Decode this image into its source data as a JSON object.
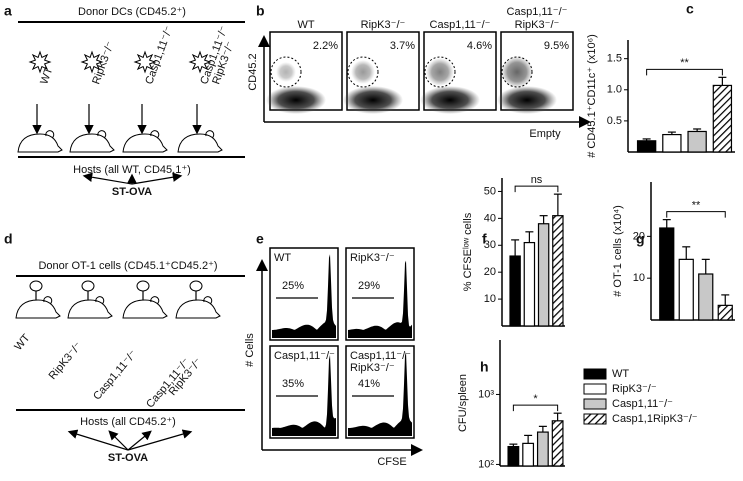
{
  "panel_a": {
    "label": "a",
    "title": "Donor DCs (CD45.2⁺)",
    "donors": [
      [
        "WT"
      ],
      [
        "RipK3⁻/⁻"
      ],
      [
        "Casp1,11⁻/⁻"
      ],
      [
        "Casp1,11⁻/⁻",
        "RipK3⁻/⁻"
      ]
    ],
    "hosts": "Hosts (all WT, CD45.1⁺)",
    "challenge": "ST-OVA"
  },
  "panel_b": {
    "label": "b",
    "plots": [
      {
        "name": [
          "WT"
        ],
        "pct": "2.2%"
      },
      {
        "name": [
          "RipK3⁻/⁻"
        ],
        "pct": "3.7%"
      },
      {
        "name": [
          "Casp1,11⁻/⁻"
        ],
        "pct": "4.6%"
      },
      {
        "name": [
          "Casp1,11⁻/⁻",
          "RipK3⁻/⁻"
        ],
        "pct": "9.5%"
      }
    ],
    "ylabel": "CD45.2",
    "xlabel": "Empty"
  },
  "panel_d": {
    "label": "d",
    "title": "Donor OT-1 cells (CD45.1⁺CD45.2⁺)",
    "donors": [
      [
        "WT"
      ],
      [
        "RipK3⁻/⁻"
      ],
      [
        "Casp1,11⁻/⁻"
      ],
      [
        "Casp1,11⁻/⁻",
        "RipK3⁻/⁻"
      ]
    ],
    "hosts": "Hosts (all CD45.2⁺)",
    "challenge": "ST-OVA"
  },
  "panel_e": {
    "label": "e",
    "plots": [
      {
        "name": [
          "WT"
        ],
        "pct": "25%"
      },
      {
        "name": [
          "RipK3⁻/⁻"
        ],
        "pct": "29%"
      },
      {
        "name": [
          "Casp1,11⁻/⁻"
        ],
        "pct": "35%"
      },
      {
        "name": [
          "Casp1,11⁻/⁻",
          "RipK3⁻/⁻"
        ],
        "pct": "41%"
      }
    ],
    "ylabel": "# Cells",
    "xlabel": "CFSE"
  },
  "chart_data": [
    {
      "label": "c",
      "type": "bar",
      "ylabel": "# CD45.1⁺CD11c⁺ (x10⁶)",
      "categories": [
        null,
        null,
        null,
        null
      ],
      "values": [
        0.18,
        0.28,
        0.33,
        1.07
      ],
      "errors": [
        0.03,
        0.04,
        0.04,
        0.13
      ],
      "colors": [
        "#000000",
        "#ffffff",
        "#c8c8c8",
        "#ffffff"
      ],
      "hatched": [
        false,
        false,
        false,
        true
      ],
      "ylim": [
        0,
        1.8
      ],
      "yticks": [
        0.5,
        {
          "value": 1,
          "label": "1.0"
        },
        1.5
      ],
      "annotation": "**"
    },
    {
      "label": "f",
      "type": "bar",
      "ylabel": "% CFSEˡᵒʷ cells",
      "categories": [
        null,
        null,
        null,
        null
      ],
      "values": [
        26,
        31,
        38,
        41
      ],
      "errors": [
        6,
        4,
        3,
        8
      ],
      "colors": [
        "#000000",
        "#ffffff",
        "#c8c8c8",
        "#ffffff"
      ],
      "hatched": [
        false,
        false,
        false,
        true
      ],
      "ylim": [
        0,
        55
      ],
      "yticks": [
        10,
        20,
        30,
        40,
        50
      ],
      "annotation": "ns"
    },
    {
      "label": "g",
      "type": "bar",
      "ylabel": "# OT-1 cells (x10⁴)",
      "categories": [
        null,
        null,
        null,
        null
      ],
      "values": [
        22,
        14.5,
        11,
        3.5
      ],
      "errors": [
        2,
        3,
        3.5,
        2.5
      ],
      "colors": [
        "#000000",
        "#ffffff",
        "#c8c8c8",
        "#ffffff"
      ],
      "hatched": [
        false,
        false,
        false,
        true
      ],
      "ylim": [
        0,
        33
      ],
      "yticks": [
        10,
        20
      ],
      "annotation": "**"
    },
    {
      "label": "h",
      "type": "bar",
      "log": true,
      "ylabel": "CFU/spleen",
      "categories": [
        null,
        null,
        null,
        null
      ],
      "values": [
        180,
        200,
        290,
        420
      ],
      "errors": [
        15,
        60,
        60,
        120
      ],
      "colors": [
        "#000000",
        "#ffffff",
        "#c8c8c8",
        "#ffffff"
      ],
      "hatched": [
        false,
        false,
        false,
        true
      ],
      "ylim": [
        95,
        6000
      ],
      "yticks": [
        {
          "value": 100,
          "label": "10²"
        },
        {
          "value": 1000,
          "label": "10³"
        }
      ],
      "annotation": "*",
      "legend": [
        "WT",
        "RipK3⁻/⁻",
        "Casp1,11⁻/⁻",
        "Casp1,1RipK3⁻/⁻"
      ]
    }
  ]
}
